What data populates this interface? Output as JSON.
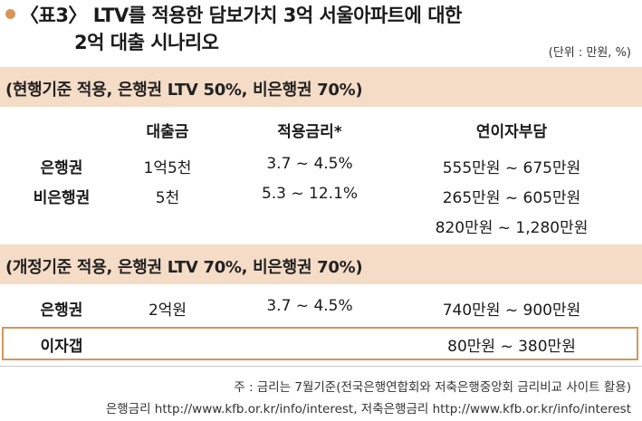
{
  "title": {
    "line1": "〈표3〉 LTV를 적용한 담보가치 3억 서울아파트에 대한",
    "line2": "2억 대출 시나리오"
  },
  "unit": "(단위 : 만원, %)",
  "colors": {
    "accent": "#d9945a",
    "band": "#f5dcc7"
  },
  "section1": {
    "title": "(현행기준 적용, 은행권 LTV 50%, 비은행권 70%)",
    "headers": {
      "loan": "대출금",
      "rate": "적용금리*",
      "burden": "연이자부담"
    },
    "rows": [
      {
        "label": "은행권",
        "loan": "1억5천",
        "rate": "3.7 ~ 4.5%",
        "burden": "555만원 ~ 675만원"
      },
      {
        "label": "비은행권",
        "loan": "5천",
        "rate": "5.3 ~ 12.1%",
        "burden": "265만원 ~ 605만원"
      },
      {
        "label": "",
        "loan": "",
        "rate": "",
        "burden": "820만원 ~ 1,280만원"
      }
    ]
  },
  "section2": {
    "title": "(개정기준 적용, 은행권 LTV 70%, 비은행권 70%)",
    "rows": [
      {
        "label": "은행권",
        "loan": "2억원",
        "rate": "3.7 ~ 4.5%",
        "burden": "740만원 ~ 900만원"
      }
    ],
    "gap": {
      "label": "이자갭",
      "burden": "80만원 ~ 380만원"
    }
  },
  "notes": {
    "line1": "주 : 금리는 7월기준(전국은행연합회와 저축은행중앙회 금리비교 사이트 활용)",
    "line2": "은행금리 http://www.kfb.or.kr/info/interest, 저축은행금리 http://www.kfb.or.kr/info/interest"
  }
}
